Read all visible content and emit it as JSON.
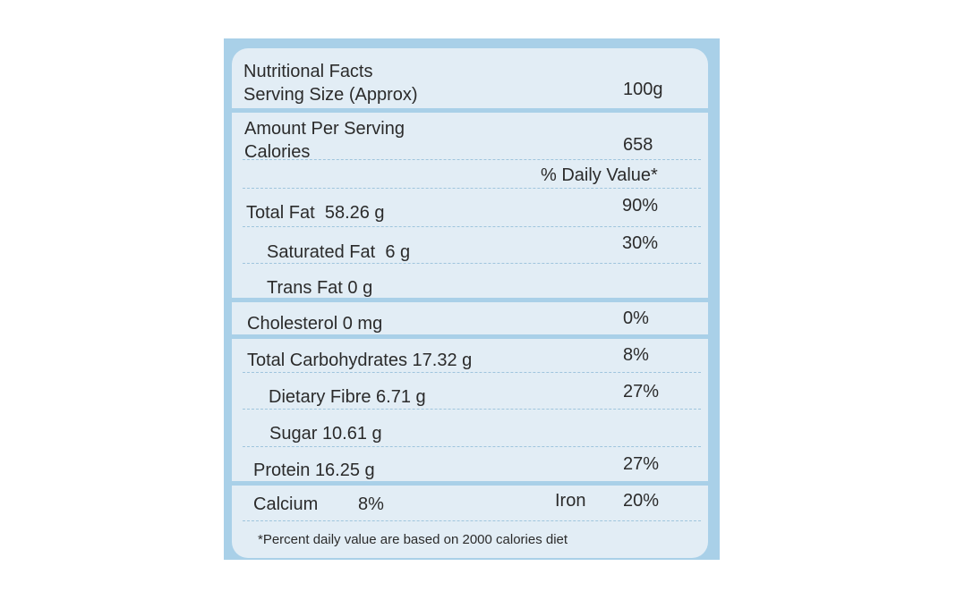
{
  "header": {
    "title": "Nutritional Facts",
    "serving_label": "Serving Size (Approx)",
    "serving_value": "100g"
  },
  "amount_per_serving": "Amount Per Serving",
  "calories_label": "Calories",
  "calories_value": "658",
  "daily_value_header": "% Daily Value*",
  "rows": [
    {
      "label": "Total Fat",
      "amount": "58.26 g",
      "dv": "90%"
    },
    {
      "label": "Saturated Fat",
      "amount": "6 g",
      "dv": "30%"
    },
    {
      "label": "Trans Fat",
      "amount": "0 g",
      "dv": ""
    },
    {
      "label": "Cholesterol",
      "amount": "0 mg",
      "dv": "0%"
    },
    {
      "label": "Total Carbohydrates",
      "amount": "17.32 g",
      "dv": "8%"
    },
    {
      "label": "Dietary Fibre",
      "amount": "6.71 g",
      "dv": "27%"
    },
    {
      "label": "Sugar",
      "amount": "10.61 g",
      "dv": ""
    },
    {
      "label": "Protein",
      "amount": "16.25 g",
      "dv": "27%"
    }
  ],
  "minerals": {
    "calcium_label": "Calcium",
    "calcium_value": "8%",
    "iron_label": "Iron",
    "iron_value": "20%"
  },
  "footnote": "*Percent daily value are based on 2000 calories diet",
  "colors": {
    "border": "#a9d0e8",
    "panel": "#e2edf5",
    "text": "#2b2b2b"
  }
}
